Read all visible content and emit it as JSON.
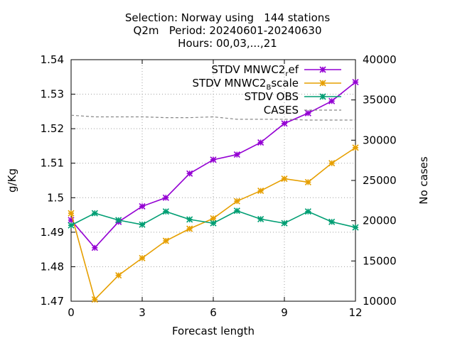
{
  "chart_data": {
    "type": "line",
    "title_lines": [
      "Selection: Norway using   144 stations",
      "Q2m   Period: 20240601-20240630",
      "Hours: 00,03,...,21"
    ],
    "xlabel": "Forecast length",
    "ylabel": "g/Kg",
    "y2label": "No cases",
    "xlim": [
      0,
      12
    ],
    "ylim": [
      1.47,
      1.54
    ],
    "y2lim": [
      10000,
      40000
    ],
    "x_ticks": [
      0,
      3,
      6,
      9,
      12
    ],
    "y_ticks": [
      1.47,
      1.48,
      1.49,
      1.5,
      1.51,
      1.52,
      1.53,
      1.54
    ],
    "y_tick_labels": [
      "1.47",
      "1.48",
      "1.49",
      "1.5",
      "1.51",
      "1.52",
      "1.53",
      "1.54"
    ],
    "y2_ticks": [
      10000,
      15000,
      20000,
      25000,
      30000,
      35000,
      40000
    ],
    "grid": true,
    "legend_position": "top-right",
    "x": [
      0,
      1,
      2,
      3,
      4,
      5,
      6,
      7,
      8,
      9,
      10,
      11,
      12
    ],
    "series": [
      {
        "name": "STDV MNWC2_ref",
        "legend_main": "STDV MNWC2",
        "legend_sub": "r",
        "legend_tail": "ef",
        "color": "#9400d3",
        "axis": "y",
        "marker": "star",
        "values": [
          1.4935,
          1.4855,
          1.493,
          1.4975,
          1.5,
          1.507,
          1.511,
          1.5125,
          1.516,
          1.5215,
          1.5245,
          1.528,
          1.5335
        ]
      },
      {
        "name": "STDV MNWC2_Bscale",
        "legend_main": "STDV MNWC2",
        "legend_sub": "B",
        "legend_tail": "scale",
        "color": "#e69f00",
        "axis": "y",
        "marker": "star",
        "values": [
          1.4955,
          1.4705,
          1.4775,
          1.4825,
          1.4875,
          1.491,
          1.494,
          1.499,
          1.502,
          1.5055,
          1.5045,
          1.51,
          1.5145
        ]
      },
      {
        "name": "STDV OBS",
        "legend_main": "STDV OBS",
        "legend_sub": "",
        "legend_tail": "",
        "color": "#009e73",
        "axis": "y",
        "marker": "star",
        "values": [
          1.492,
          1.4955,
          1.4935,
          1.4922,
          1.496,
          1.4937,
          1.4926,
          1.4962,
          1.4938,
          1.4926,
          1.496,
          1.493,
          1.4914
        ]
      },
      {
        "name": "CASES",
        "legend_main": "CASES",
        "legend_sub": "",
        "legend_tail": "",
        "color": "#888888",
        "axis": "y2",
        "marker": "none",
        "dashed": true,
        "values": [
          33100,
          32900,
          32900,
          32900,
          32800,
          32800,
          32900,
          32600,
          32600,
          32600,
          32500,
          32500,
          32500
        ]
      }
    ]
  }
}
